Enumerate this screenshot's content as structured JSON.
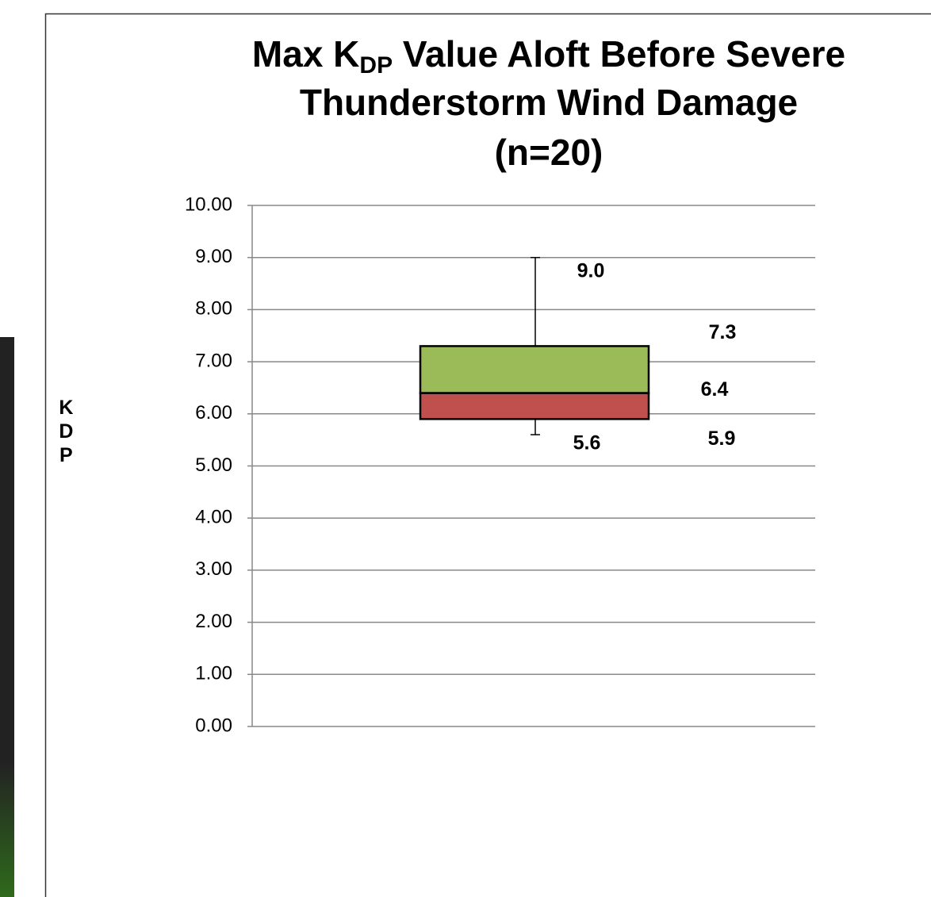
{
  "chart_data": {
    "type": "box",
    "title": [
      "Max K",
      "DP",
      " Value Aloft Before Severe",
      "Thunderstorm Wind Damage",
      "(n=20)"
    ],
    "ylabel": "KDP",
    "values": [
      5.6,
      5.9,
      6.4,
      7.3,
      9.0
    ],
    "value_labels": [
      "5.6",
      "5.9",
      "6.4",
      "7.3",
      "9.0"
    ],
    "colors": [
      "#c0504d",
      "#9bbb59"
    ],
    "ylim": [
      0,
      10
    ],
    "yticks": [
      {
        "value": 0,
        "label": "0.00"
      },
      {
        "value": 1,
        "label": "1.00"
      },
      {
        "value": 2,
        "label": "2.00"
      },
      {
        "value": 3,
        "label": "3.00"
      },
      {
        "value": 4,
        "label": "4.00"
      },
      {
        "value": 5,
        "label": "5.00"
      },
      {
        "value": 6,
        "label": "6.00"
      },
      {
        "value": 7,
        "label": "7.00"
      },
      {
        "value": 8,
        "label": "8.00"
      },
      {
        "value": 9,
        "label": "9.00"
      },
      {
        "value": 10,
        "label": "10.00"
      }
    ],
    "grid": true
  }
}
